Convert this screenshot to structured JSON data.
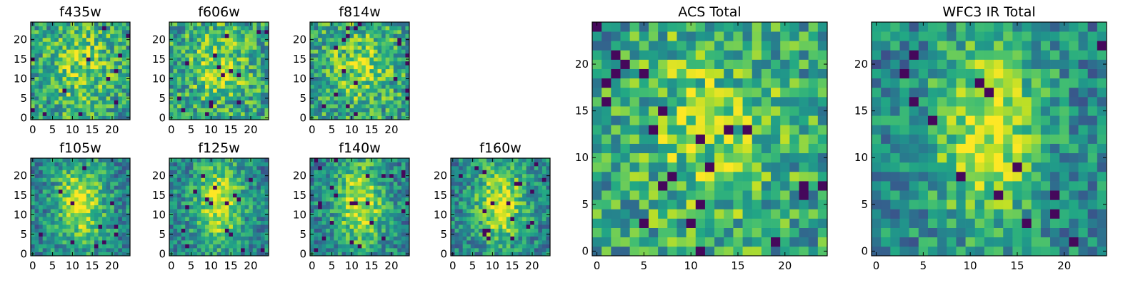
{
  "chart_data": [
    {
      "type": "heatmap",
      "title": "f435w",
      "xticks": [
        "0",
        "5",
        "10",
        "15",
        "20"
      ],
      "yticks": [
        "0",
        "5",
        "10",
        "15",
        "20"
      ],
      "range": [
        0,
        25
      ],
      "colormap": "viridis",
      "grid": false,
      "pattern": "noise"
    },
    {
      "type": "heatmap",
      "title": "f606w",
      "xticks": [
        "0",
        "5",
        "10",
        "15",
        "20"
      ],
      "yticks": [
        "0",
        "5",
        "10",
        "15",
        "20"
      ],
      "range": [
        0,
        25
      ],
      "colormap": "viridis",
      "grid": false,
      "pattern": "noise"
    },
    {
      "type": "heatmap",
      "title": "f814w",
      "xticks": [
        "0",
        "5",
        "10",
        "15",
        "20"
      ],
      "yticks": [
        "0",
        "5",
        "10",
        "15",
        "20"
      ],
      "range": [
        0,
        25
      ],
      "colormap": "viridis",
      "grid": false,
      "pattern": "noise"
    },
    {
      "type": "heatmap",
      "title": "f105w",
      "xticks": [
        "0",
        "5",
        "10",
        "15",
        "20"
      ],
      "yticks": [
        "0",
        "5",
        "10",
        "15",
        "20"
      ],
      "range": [
        0,
        25
      ],
      "colormap": "viridis",
      "grid": false,
      "pattern": "central-source"
    },
    {
      "type": "heatmap",
      "title": "f125w",
      "xticks": [
        "0",
        "5",
        "10",
        "15",
        "20"
      ],
      "yticks": [
        "0",
        "5",
        "10",
        "15",
        "20"
      ],
      "range": [
        0,
        25
      ],
      "colormap": "viridis",
      "grid": false,
      "pattern": "central-source"
    },
    {
      "type": "heatmap",
      "title": "f140w",
      "xticks": [
        "0",
        "5",
        "10",
        "15",
        "20"
      ],
      "yticks": [
        "0",
        "5",
        "10",
        "15",
        "20"
      ],
      "range": [
        0,
        25
      ],
      "colormap": "viridis",
      "grid": false,
      "pattern": "central-source"
    },
    {
      "type": "heatmap",
      "title": "f160w",
      "xticks": [
        "0",
        "5",
        "10",
        "15",
        "20"
      ],
      "yticks": [
        "0",
        "5",
        "10",
        "15",
        "20"
      ],
      "range": [
        0,
        25
      ],
      "colormap": "viridis",
      "grid": false,
      "pattern": "central-source"
    },
    {
      "type": "heatmap",
      "title": "ACS Total",
      "xticks": [
        "0",
        "5",
        "10",
        "15",
        "20"
      ],
      "yticks": [
        "0",
        "5",
        "10",
        "15",
        "20"
      ],
      "range": [
        0,
        25
      ],
      "colormap": "viridis",
      "grid": false,
      "pattern": "noise"
    },
    {
      "type": "heatmap",
      "title": "WFC3 IR Total",
      "xticks": [
        "0",
        "5",
        "10",
        "15",
        "20"
      ],
      "yticks": [
        "0",
        "5",
        "10",
        "15",
        "20"
      ],
      "range": [
        0,
        25
      ],
      "colormap": "viridis",
      "grid": false,
      "pattern": "central-source"
    }
  ]
}
